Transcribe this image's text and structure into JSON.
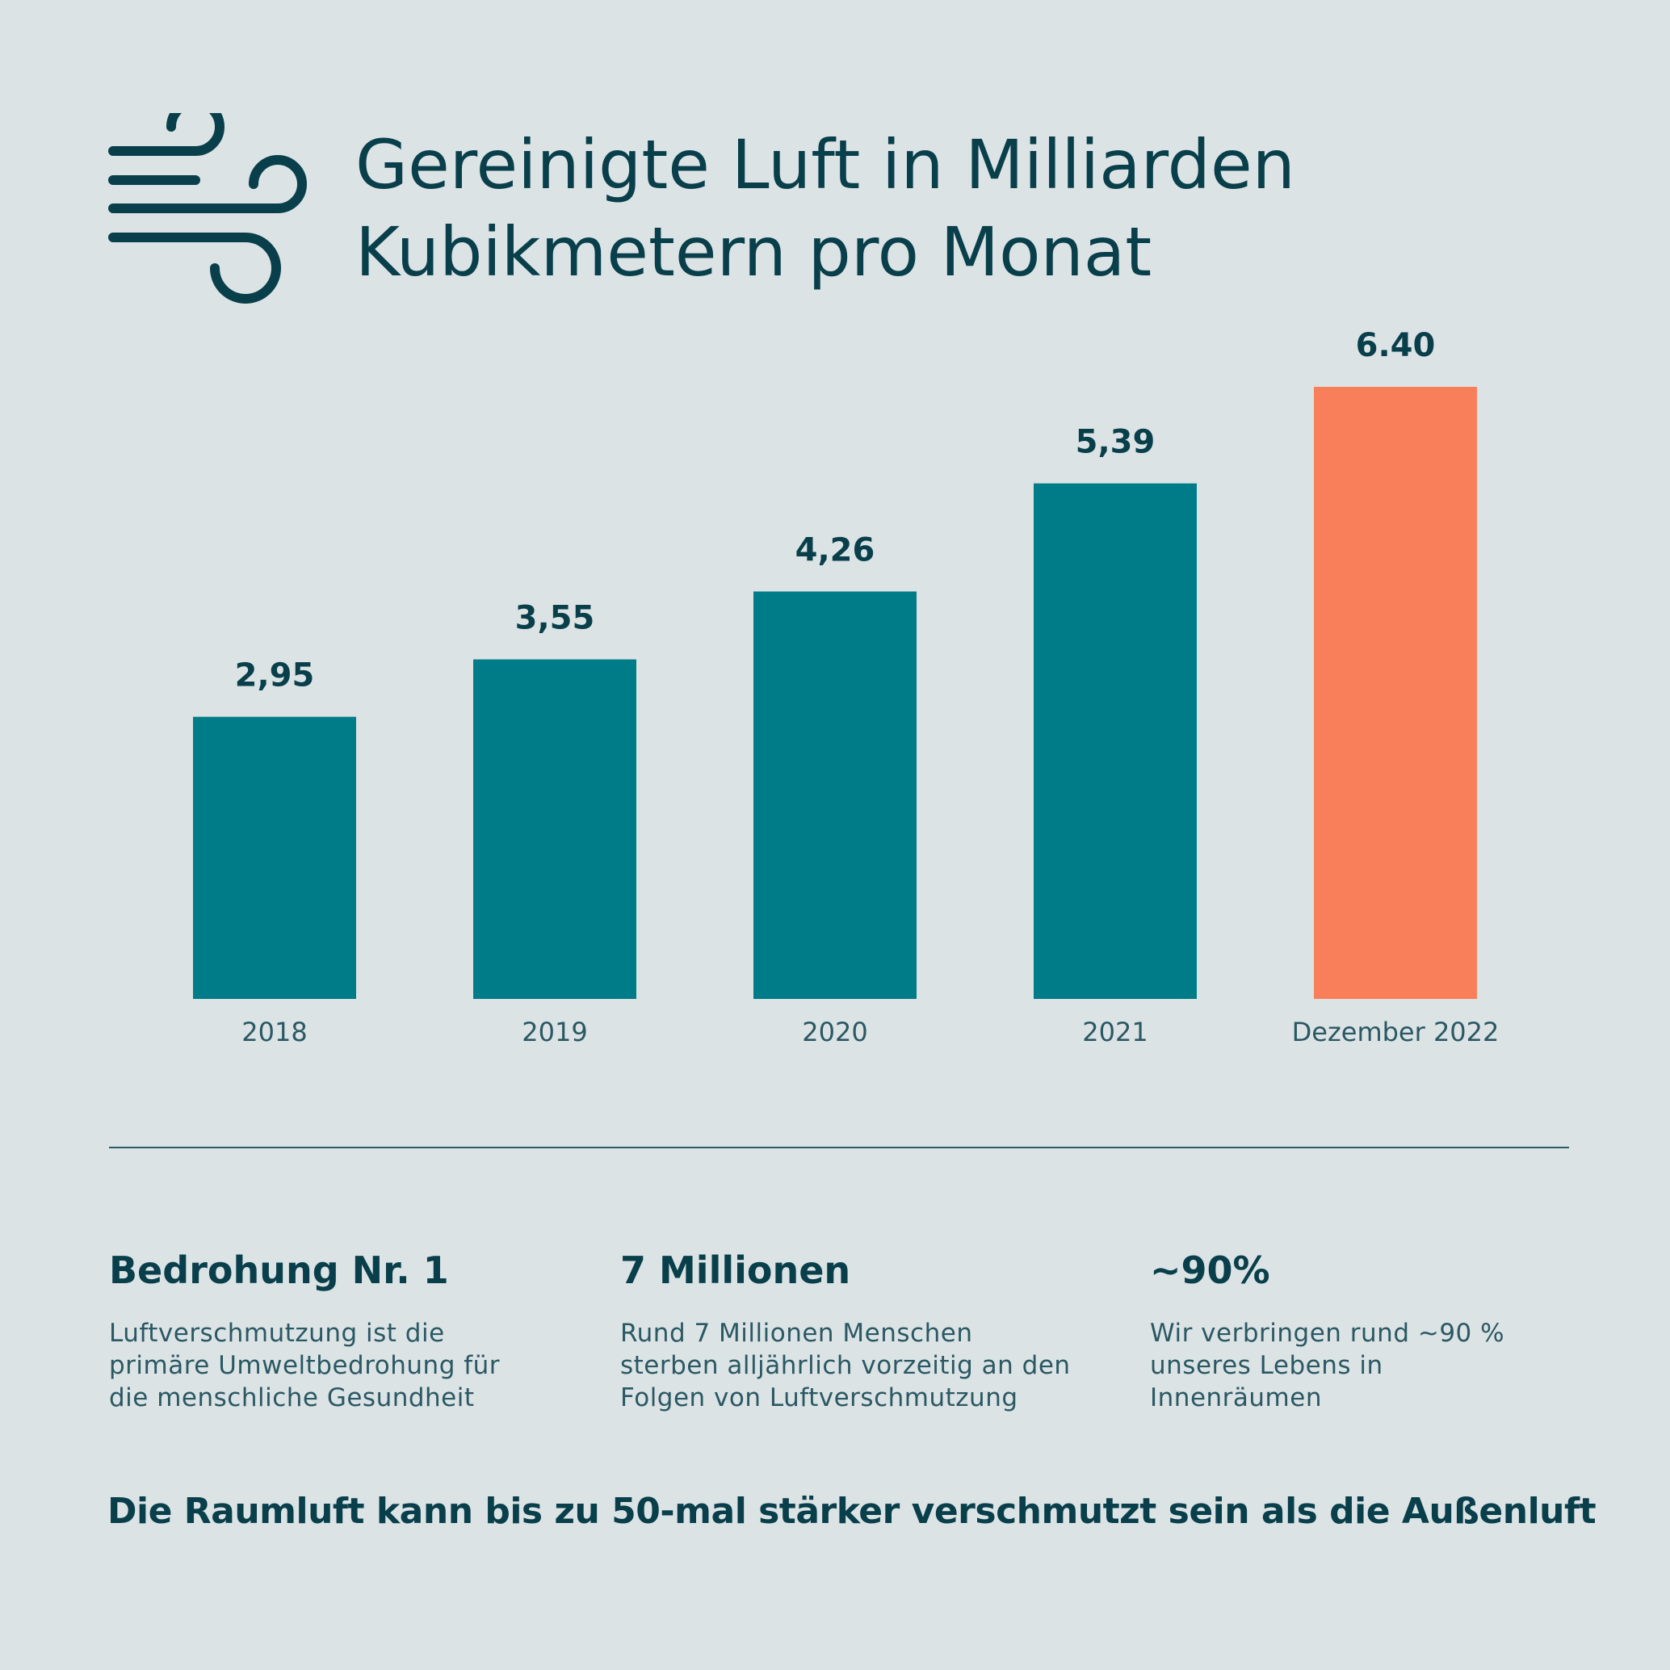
{
  "title": {
    "line1": "Gereinigte Luft in Milliarden",
    "line2": "Kubikmetern pro Monat"
  },
  "icon": "wind-icon",
  "chart_data": {
    "type": "bar",
    "title": "Gereinigte Luft in Milliarden Kubikmetern pro Monat",
    "categories": [
      "2018",
      "2019",
      "2020",
      "2021",
      "Dezember 2022"
    ],
    "values": [
      2.95,
      3.55,
      4.26,
      5.39,
      6.4
    ],
    "value_labels": [
      "2,95",
      "3,55",
      "4,26",
      "5,39",
      "6.40"
    ],
    "bar_colors": [
      "#007c88",
      "#007c88",
      "#007c88",
      "#007c88",
      "#f97f5a"
    ],
    "ylim": [
      0,
      6.4
    ],
    "grid": false,
    "xlabel": "",
    "ylabel": ""
  },
  "stats": [
    {
      "heading": "Bedrohung Nr. 1",
      "lines": [
        "Luftverschmutzung ist die",
        "primäre Umweltbedrohung für",
        "die menschliche Gesundheit"
      ]
    },
    {
      "heading": "7 Millionen",
      "lines": [
        "Rund 7 Millionen Menschen",
        "sterben alljährlich vorzeitig an den",
        "Folgen von Luftverschmutzung"
      ]
    },
    {
      "heading": "~90%",
      "lines": [
        "Wir verbringen rund ~90 %",
        "unseres Lebens in",
        "Innenräumen"
      ]
    }
  ],
  "footer": "Die Raumluft kann bis zu 50-mal stärker verschmutzt sein als die Außenluft",
  "colors": {
    "background": "#dce3e5",
    "text": "#083f4b",
    "bar": "#007c88",
    "highlight": "#f97f5a"
  }
}
